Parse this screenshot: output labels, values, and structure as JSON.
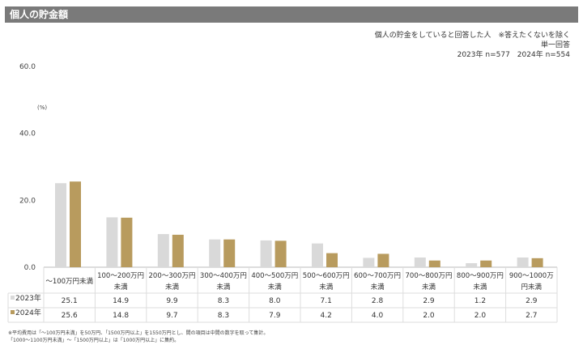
{
  "title": "個人の貯金額",
  "notes": [
    "個人の貯金をしていると回答した人　※答えたくないを除く",
    "単一回答",
    "2023年 n=577　2024年 n=554"
  ],
  "footnotes": [
    "※平均費用は「～100万円未満」を50万円、「1500万円以上」を1550万円とし、間の項目は中間の数字を取って集計。",
    "「1000～1100万円未満」～「1500万円以上」は「1000万円以上」に集約。"
  ],
  "chart_data": {
    "type": "bar",
    "unit_label": "(%)",
    "ylim": [
      0,
      60
    ],
    "yticks": [
      "0.0",
      "20.0",
      "40.0",
      "60.0"
    ],
    "grid": false,
    "categories": [
      [
        "～100万円未満"
      ],
      [
        "100～200万円",
        "未満"
      ],
      [
        "200～300万円",
        "未満"
      ],
      [
        "300～400万円",
        "未満"
      ],
      [
        "400～500万円",
        "未満"
      ],
      [
        "500～600万円",
        "未満"
      ],
      [
        "600～700万円",
        "未満"
      ],
      [
        "700～800万円",
        "未満"
      ],
      [
        "800～900万円",
        "未満"
      ],
      [
        "900～1000万",
        "円未満"
      ]
    ],
    "series": [
      {
        "name": "2023年",
        "color": "#d9d9d9",
        "values": [
          25.1,
          14.9,
          9.9,
          8.3,
          8.0,
          7.1,
          2.8,
          2.9,
          1.2,
          2.9
        ],
        "labels": [
          "25.1",
          "14.9",
          "9.9",
          "8.3",
          "8.0",
          "7.1",
          "2.8",
          "2.9",
          "1.2",
          "2.9"
        ]
      },
      {
        "name": "2024年",
        "color": "#b89b5e",
        "values": [
          25.6,
          14.8,
          9.7,
          8.3,
          7.9,
          4.2,
          4.0,
          2.0,
          2.0,
          2.7
        ],
        "labels": [
          "25.6",
          "14.8",
          "9.7",
          "8.3",
          "7.9",
          "4.2",
          "4.0",
          "2.0",
          "2.0",
          "2.7"
        ]
      }
    ]
  }
}
